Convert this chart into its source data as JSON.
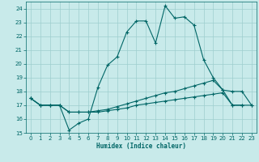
{
  "title": "",
  "xlabel": "Humidex (Indice chaleur)",
  "xlim": [
    -0.5,
    23.5
  ],
  "ylim": [
    15,
    24.5
  ],
  "yticks": [
    15,
    16,
    17,
    18,
    19,
    20,
    21,
    22,
    23,
    24
  ],
  "xticks": [
    0,
    1,
    2,
    3,
    4,
    5,
    6,
    7,
    8,
    9,
    10,
    11,
    12,
    13,
    14,
    15,
    16,
    17,
    18,
    19,
    20,
    21,
    22,
    23
  ],
  "bg_color": "#c8eaea",
  "line_color": "#006666",
  "grid_color": "#9ecece",
  "lines": [
    {
      "x": [
        0,
        1,
        2,
        3,
        4,
        5,
        6,
        7,
        8,
        9,
        10,
        11,
        12,
        13,
        14,
        15,
        16,
        17,
        18,
        19,
        20,
        21,
        22
      ],
      "y": [
        17.5,
        17.0,
        17.0,
        17.0,
        15.2,
        15.7,
        16.0,
        18.3,
        19.9,
        20.5,
        22.3,
        23.1,
        23.1,
        21.5,
        24.2,
        23.3,
        23.4,
        22.8,
        20.3,
        19.0,
        18.1,
        17.0,
        17.0
      ]
    },
    {
      "x": [
        0,
        1,
        2,
        3,
        4,
        5,
        6,
        7,
        8,
        9,
        10,
        11,
        12,
        13,
        14,
        15,
        16,
        17,
        18,
        19,
        20,
        21,
        22,
        23
      ],
      "y": [
        17.5,
        17.0,
        17.0,
        17.0,
        16.5,
        16.5,
        16.5,
        16.6,
        16.7,
        16.9,
        17.1,
        17.3,
        17.5,
        17.7,
        17.9,
        18.0,
        18.2,
        18.4,
        18.6,
        18.8,
        18.1,
        18.0,
        18.0,
        17.0
      ]
    },
    {
      "x": [
        0,
        1,
        2,
        3,
        4,
        5,
        6,
        7,
        8,
        9,
        10,
        11,
        12,
        13,
        14,
        15,
        16,
        17,
        18,
        19,
        20,
        21,
        22,
        23
      ],
      "y": [
        17.5,
        17.0,
        17.0,
        17.0,
        16.5,
        16.5,
        16.5,
        16.5,
        16.6,
        16.7,
        16.8,
        17.0,
        17.1,
        17.2,
        17.3,
        17.4,
        17.5,
        17.6,
        17.7,
        17.8,
        17.9,
        17.0,
        17.0,
        17.0
      ]
    }
  ]
}
